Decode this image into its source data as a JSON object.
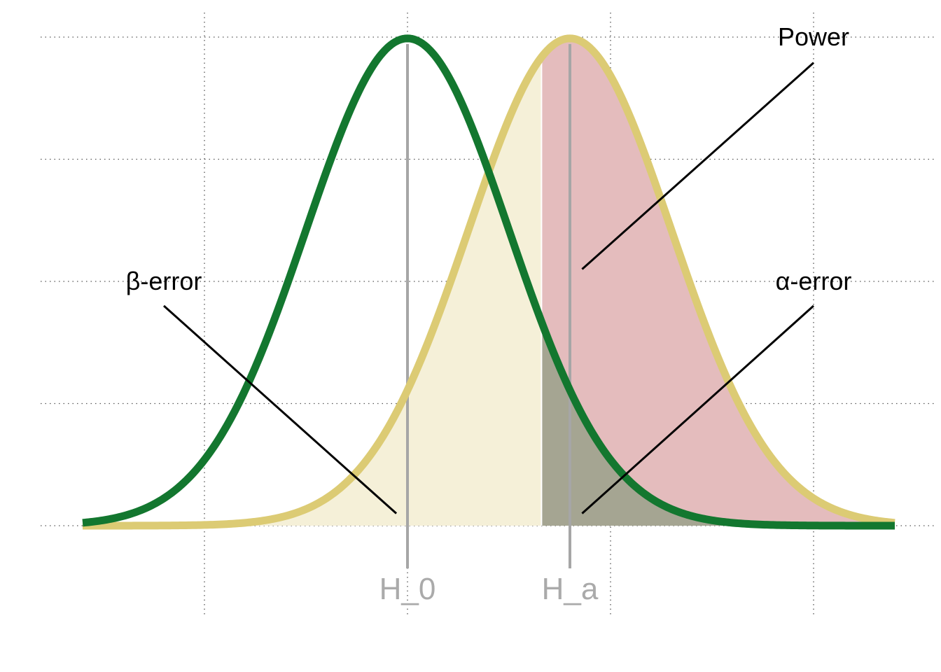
{
  "chart_data": {
    "type": "area",
    "title": "",
    "xlabel": "",
    "ylabel": "",
    "grid": true,
    "legend": "none",
    "xlim": [
      -3,
      5
    ],
    "ylim": [
      0,
      0.4
    ],
    "x_gridlines": [
      -2,
      0,
      2,
      4
    ],
    "y_gridlines": [
      0,
      0.1,
      0.2,
      0.3,
      0.4
    ],
    "series": [
      {
        "name": "H_0",
        "mean": 0,
        "sd": 1,
        "color": "#13772f"
      },
      {
        "name": "H_a",
        "mean": 1.6,
        "sd": 1,
        "color": "#dccb74"
      }
    ],
    "critical_value": 1.32,
    "regions": [
      {
        "name": "β-error",
        "from": -3,
        "to": 1.32,
        "under": "H_a",
        "color": "#f5f0d8"
      },
      {
        "name": "Power",
        "from": 1.32,
        "to": 5,
        "under": "H_a",
        "color": "#e4bcbd"
      },
      {
        "name": "α-error",
        "from": 1.32,
        "to": 5,
        "under": "H_0",
        "color": "#a5a592"
      }
    ],
    "mean_labels": [
      {
        "text": "H_0",
        "x": 0
      },
      {
        "text": "H_a",
        "x": 1.6
      }
    ],
    "annotations": [
      {
        "text": "Power",
        "text_x": 4.0,
        "text_y": 0.4,
        "from": [
          4.0,
          0.379
        ],
        "to": [
          1.72,
          0.21
        ]
      },
      {
        "text": "β-error",
        "text_x": -2.4,
        "text_y": 0.2,
        "from": [
          -2.4,
          0.18
        ],
        "to": [
          -0.11,
          0.01
        ]
      },
      {
        "text": "α-error",
        "text_x": 4.0,
        "text_y": 0.2,
        "from": [
          4.0,
          0.18
        ],
        "to": [
          1.72,
          0.01
        ]
      }
    ]
  }
}
